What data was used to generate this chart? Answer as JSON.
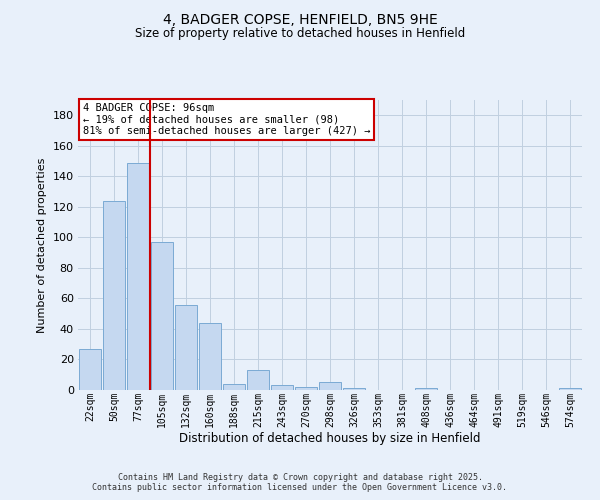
{
  "title": "4, BADGER COPSE, HENFIELD, BN5 9HE",
  "subtitle": "Size of property relative to detached houses in Henfield",
  "xlabel": "Distribution of detached houses by size in Henfield",
  "ylabel": "Number of detached properties",
  "categories": [
    "22sqm",
    "50sqm",
    "77sqm",
    "105sqm",
    "132sqm",
    "160sqm",
    "188sqm",
    "215sqm",
    "243sqm",
    "270sqm",
    "298sqm",
    "326sqm",
    "353sqm",
    "381sqm",
    "408sqm",
    "436sqm",
    "464sqm",
    "491sqm",
    "519sqm",
    "546sqm",
    "574sqm"
  ],
  "values": [
    27,
    124,
    149,
    97,
    56,
    44,
    4,
    13,
    3,
    2,
    5,
    1,
    0,
    0,
    1,
    0,
    0,
    0,
    0,
    0,
    1
  ],
  "bar_color": "#c5d8f0",
  "bar_edge_color": "#7baad4",
  "grid_color": "#c0cfe0",
  "bg_color": "#e8f0fa",
  "vline_color": "#cc0000",
  "vline_pos": 2.5,
  "annotation_text": "4 BADGER COPSE: 96sqm\n← 19% of detached houses are smaller (98)\n81% of semi-detached houses are larger (427) →",
  "annotation_box_edge_color": "#cc0000",
  "footer_text": "Contains HM Land Registry data © Crown copyright and database right 2025.\nContains public sector information licensed under the Open Government Licence v3.0.",
  "ylim": [
    0,
    190
  ],
  "yticks": [
    0,
    20,
    40,
    60,
    80,
    100,
    120,
    140,
    160,
    180
  ],
  "title_fontsize": 10,
  "subtitle_fontsize": 9
}
